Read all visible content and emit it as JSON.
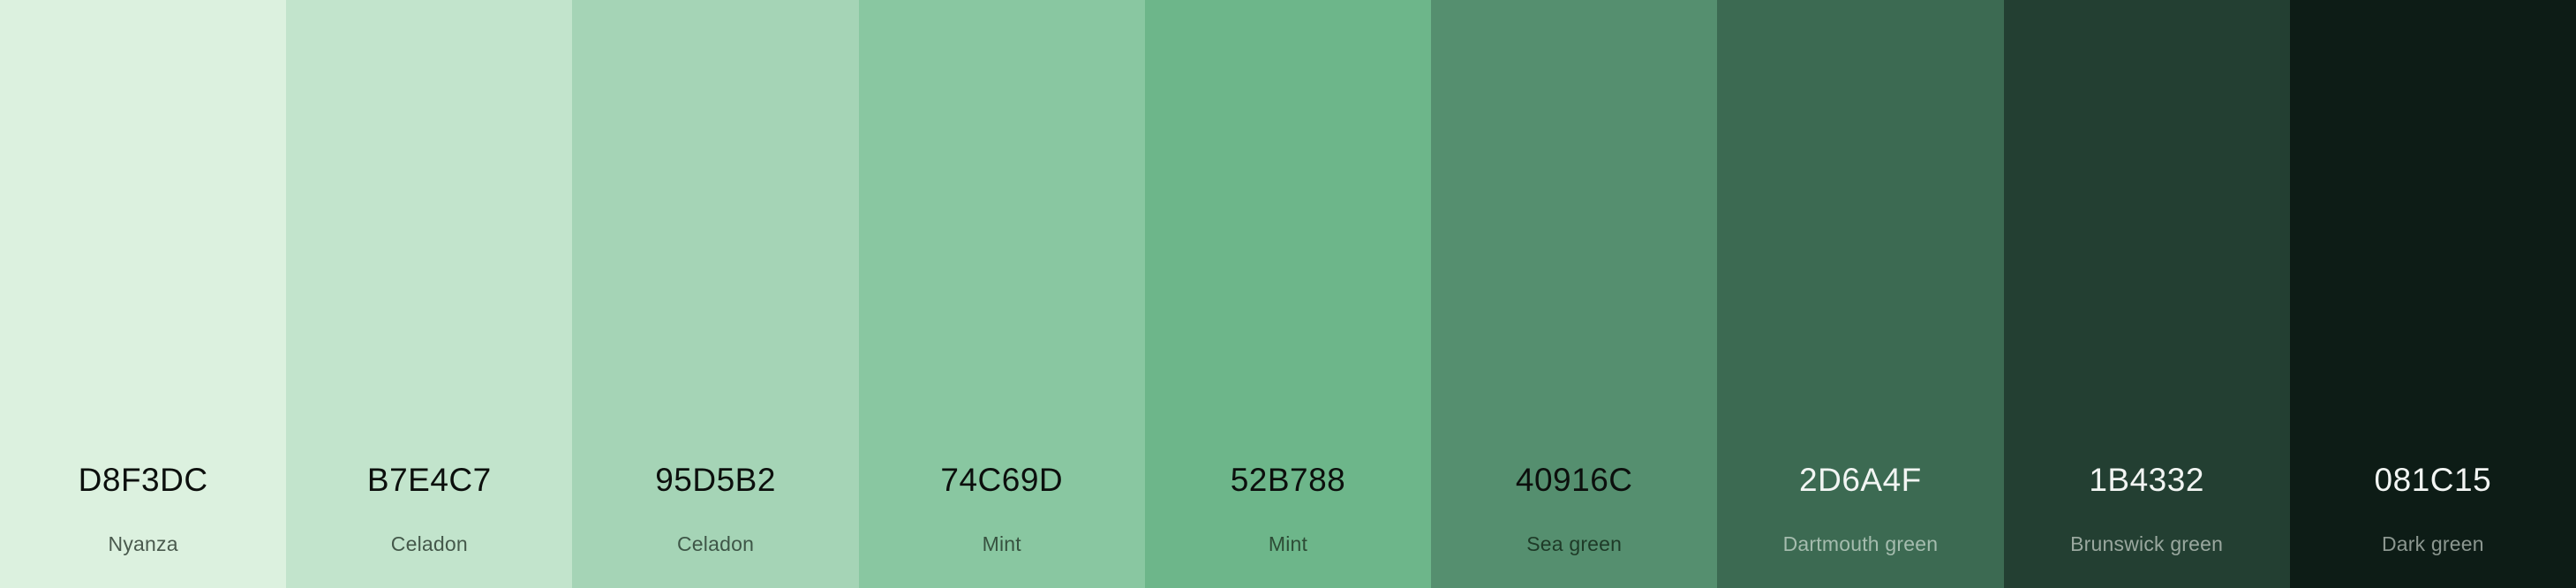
{
  "palette": [
    {
      "hex": "D8F3DC",
      "name": "Nyanza",
      "bg": "#DCF1DF",
      "hex_color": "#0C0F0D",
      "name_color": "#4A5A4E"
    },
    {
      "hex": "B7E4C7",
      "name": "Celadon",
      "bg": "#C2E4CC",
      "hex_color": "#0C0F0D",
      "name_color": "#44584A"
    },
    {
      "hex": "95D5B2",
      "name": "Celadon",
      "bg": "#A5D4B6",
      "hex_color": "#0C0F0D",
      "name_color": "#3E5647"
    },
    {
      "hex": "74C69D",
      "name": "Mint",
      "bg": "#89C7A1",
      "hex_color": "#0C0F0D",
      "name_color": "#37523F"
    },
    {
      "hex": "52B788",
      "name": "Mint",
      "bg": "#6DB68A",
      "hex_color": "#0C0F0D",
      "name_color": "#2D4C36"
    },
    {
      "hex": "40916C",
      "name": "Sea green",
      "bg": "#558F6F",
      "hex_color": "#0C0F0D",
      "name_color": "#1E3A27"
    },
    {
      "hex": "2D6A4F",
      "name": "Dartmouth green",
      "bg": "#3C6A52",
      "hex_color": "#F2F5F3",
      "name_color": "#A5BCAE"
    },
    {
      "hex": "1B4332",
      "name": "Brunswick green",
      "bg": "#233F32",
      "hex_color": "#F2F5F3",
      "name_color": "#9AA89F"
    },
    {
      "hex": "081C15",
      "name": "Dark green",
      "bg": "#0D1C16",
      "hex_color": "#F2F5F3",
      "name_color": "#8C9790"
    }
  ]
}
